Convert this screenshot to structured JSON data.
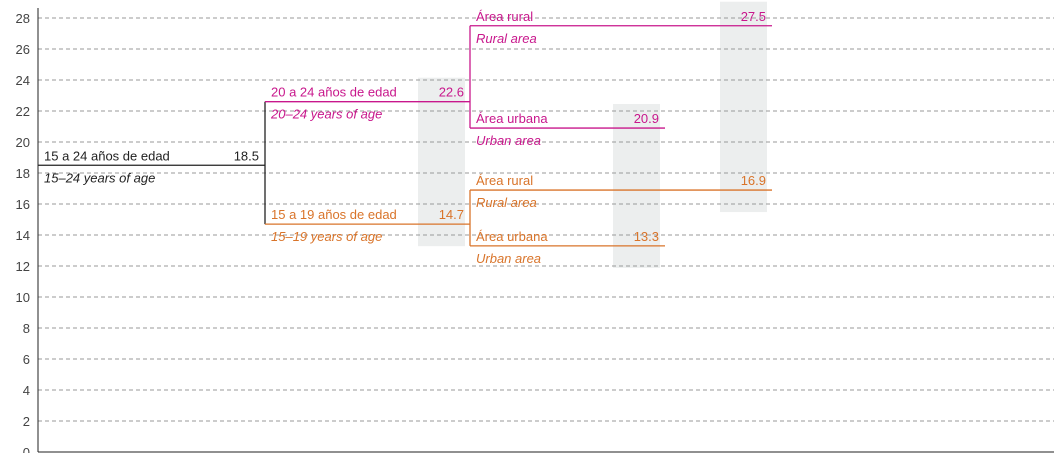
{
  "chart_data": {
    "type": "tree",
    "ylim": [
      0,
      28
    ],
    "yticks": [
      0,
      2,
      4,
      6,
      8,
      10,
      12,
      14,
      16,
      18,
      20,
      22,
      24,
      26,
      28
    ],
    "grid": true,
    "root": {
      "label": "15 a 24 años de edad",
      "label_en": "15–24 years of age",
      "value": 18.5,
      "color": "#222222",
      "children": [
        {
          "label": "20 a 24 años de edad",
          "label_en": "20–24 years of age",
          "value": 22.6,
          "color": "#c8178c",
          "children": [
            {
              "label": "Área rural",
              "label_en": "Rural area",
              "value": 27.5
            },
            {
              "label": "Área urbana",
              "label_en": "Urban area",
              "value": 20.9
            }
          ]
        },
        {
          "label": "15 a 19 años de edad",
          "label_en": "15–19 years of age",
          "value": 14.7,
          "color": "#d9742a",
          "children": [
            {
              "label": "Área rural",
              "label_en": "Rural area",
              "value": 16.9
            },
            {
              "label": "Área urbana",
              "label_en": "Urban area",
              "value": 13.3
            }
          ]
        }
      ]
    }
  }
}
